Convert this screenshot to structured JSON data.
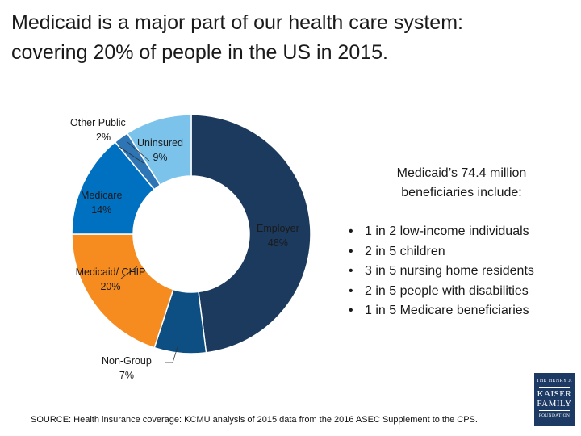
{
  "title": {
    "line1": "Medicaid is a major part of our health care system:",
    "line2": "covering 20% of people in the US in 2015."
  },
  "chart_data": {
    "type": "pie",
    "title": "",
    "slices": [
      {
        "label": "Employer",
        "value": 48,
        "display": "48%",
        "color": "#1c3a5e"
      },
      {
        "label": "Non-Group",
        "value": 7,
        "display": "7%",
        "color": "#0d4f82"
      },
      {
        "label": "Medicaid/ CHIP",
        "value": 20,
        "display": "20%",
        "color": "#f68b1f"
      },
      {
        "label": "Medicare",
        "value": 14,
        "display": "14%",
        "color": "#0070c0"
      },
      {
        "label": "Other Public",
        "value": 2,
        "display": "2%",
        "color": "#2e75b6"
      },
      {
        "label": "Uninsured",
        "value": 9,
        "display": "9%",
        "color": "#7cc3ec"
      }
    ],
    "legend": "none"
  },
  "panel": {
    "heading": "Medicaid’s 74.4 million beneficiaries include:",
    "bullet_symbol": "•",
    "items": [
      "1 in 2 low-income individuals",
      "2 in 5 children",
      "3 in 5 nursing home residents",
      "2 in 5 people with disabilities",
      "1 in 5 Medicare beneficiaries"
    ]
  },
  "source": "SOURCE: Health insurance coverage: KCMU analysis of 2015 data from the 2016 ASEC Supplement to the CPS.",
  "logo": {
    "line1": "THE HENRY J.",
    "line2": "KAISER",
    "line3": "FAMILY",
    "line4": "FOUNDATION"
  }
}
